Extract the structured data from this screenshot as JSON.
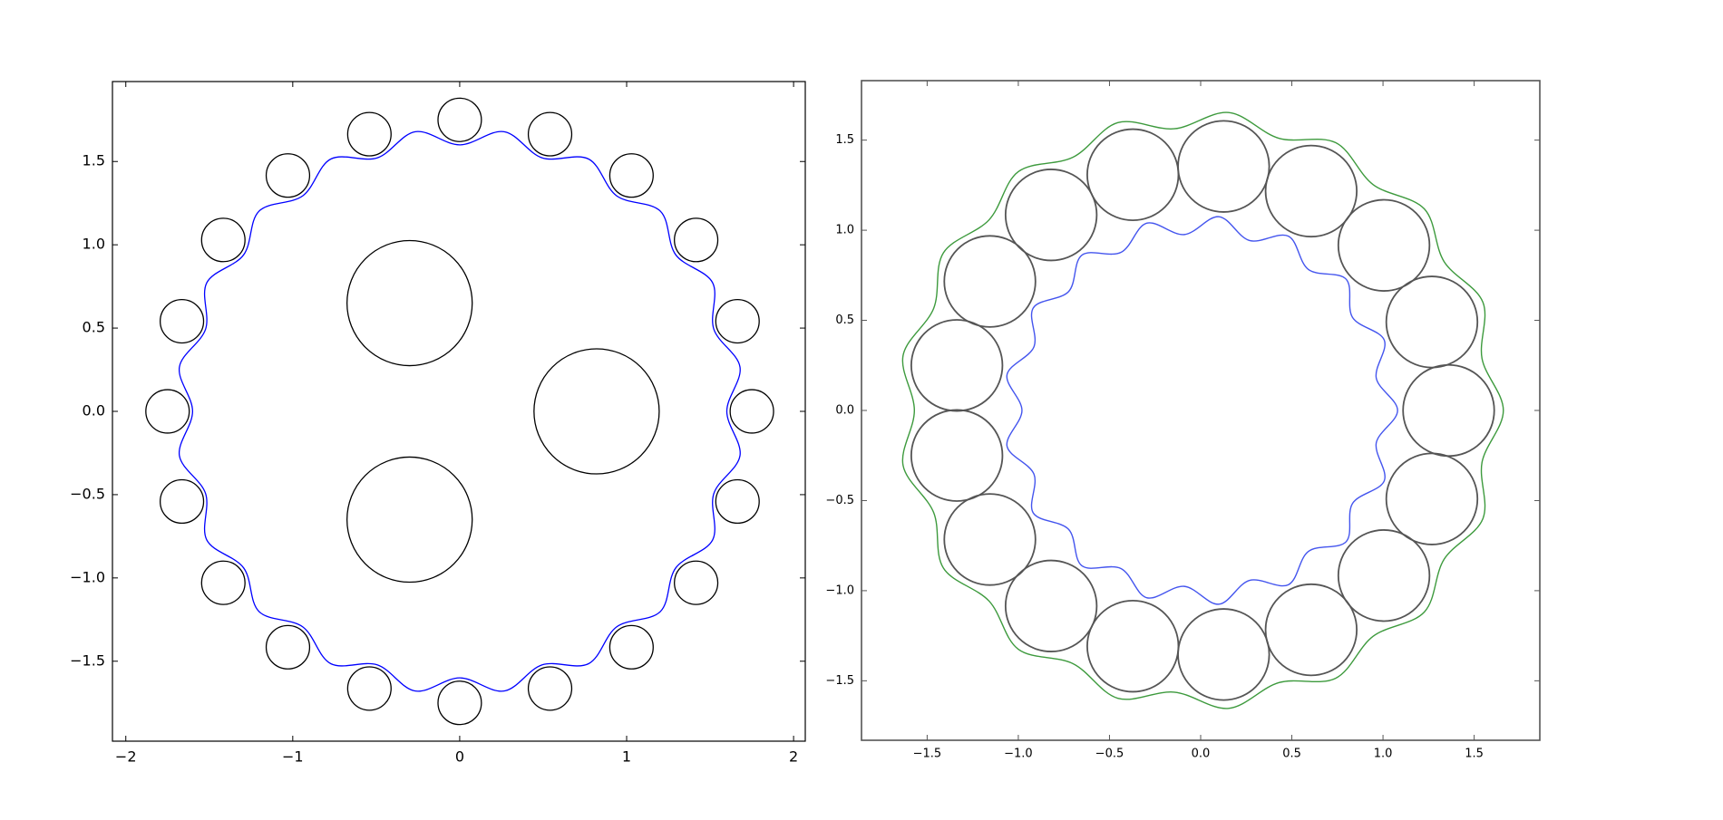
{
  "chart_data": [
    {
      "type": "circles",
      "xlim": [
        -2.08,
        2.07
      ],
      "ylim": [
        -1.98,
        1.98
      ],
      "xticks": [
        {
          "value": -2,
          "label": "−2"
        },
        {
          "value": -1,
          "label": "−1"
        },
        0,
        1,
        2
      ],
      "yticks": [
        {
          "value": -1.5,
          "label": "−1.5"
        },
        {
          "value": -1,
          "label": "−1.0"
        },
        {
          "value": -0.5,
          "label": "−0.5"
        },
        {
          "value": 0,
          "label": "0.0"
        },
        0.5,
        {
          "value": 1,
          "label": "1.0"
        },
        1.5
      ],
      "circles": {
        "color": "#000000",
        "x": [
          1.75,
          1.664,
          1.416,
          1.029,
          0.541,
          0,
          -0.541,
          -1.029,
          -1.416,
          -1.664,
          -1.75,
          -1.664,
          -1.416,
          -1.029,
          -0.541,
          0,
          0.541,
          1.029,
          1.416,
          1.664,
          0.82,
          -0.3,
          -0.3
        ],
        "y": [
          0,
          0.541,
          1.029,
          1.416,
          1.664,
          1.75,
          1.664,
          1.416,
          1.029,
          0.541,
          0,
          -0.541,
          -1.029,
          -1.416,
          -1.664,
          -1.75,
          -1.664,
          -1.416,
          -1.029,
          -0.541,
          0,
          0.65,
          -0.65
        ],
        "r": [
          0.13,
          0.13,
          0.13,
          0.13,
          0.13,
          0.13,
          0.13,
          0.13,
          0.13,
          0.13,
          0.13,
          0.13,
          0.13,
          0.13,
          0.13,
          0.13,
          0.13,
          0.13,
          0.13,
          0.13,
          0.375,
          0.375,
          0.375
        ]
      },
      "series": [
        {
          "color": "#0000ff",
          "x": [
            1.6,
            1.679,
            1.522,
            1.515,
            1.294,
            1.202,
            0.94,
            0.772,
            0.494,
            0.266,
            0,
            -0.266,
            -0.494,
            -0.772,
            -0.94,
            -1.202,
            -1.294,
            -1.515,
            -1.522,
            -1.679,
            -1.6,
            -1.679,
            -1.522,
            -1.515,
            -1.294,
            -1.202,
            -0.94,
            -0.772,
            -0.494,
            -0.266,
            0,
            0.266,
            0.494,
            0.772,
            0.94,
            1.202,
            1.294,
            1.515,
            1.522,
            1.679
          ],
          "y": [
            0,
            0.266,
            0.494,
            0.772,
            0.94,
            1.202,
            1.294,
            1.515,
            1.522,
            1.679,
            1.6,
            1.679,
            1.522,
            1.515,
            1.294,
            1.202,
            0.94,
            0.772,
            0.494,
            0.266,
            0,
            -0.266,
            -0.494,
            -0.772,
            -0.94,
            -1.202,
            -1.294,
            -1.515,
            -1.522,
            -1.679,
            -1.6,
            -1.679,
            -1.522,
            -1.515,
            -1.294,
            -1.202,
            -0.94,
            -0.772,
            -0.494,
            -0.266
          ]
        }
      ]
    },
    {
      "type": "circles",
      "xlim": [
        -1.86,
        1.86
      ],
      "ylim": [
        -1.83,
        1.83
      ],
      "xticks": [
        {
          "value": -1.5,
          "label": "−1.5"
        },
        {
          "value": -1,
          "label": "−1.0"
        },
        {
          "value": -0.5,
          "label": "−0.5"
        },
        {
          "value": 0,
          "label": "0.0"
        },
        0.5,
        {
          "value": 1,
          "label": "1.0"
        },
        1.5
      ],
      "yticks": [
        {
          "value": -1.5,
          "label": "−1.5"
        },
        {
          "value": -1,
          "label": "−1.0"
        },
        {
          "value": -0.5,
          "label": "−0.5"
        },
        {
          "value": 0,
          "label": "0.0"
        },
        0.5,
        {
          "value": 1,
          "label": "1.0"
        },
        1.5
      ],
      "circles": {
        "color": "#555555",
        "x": [
          1.36,
          1.268,
          1.005,
          0.606,
          0.126,
          -0.372,
          -0.82,
          -1.156,
          -1.337,
          -1.337,
          -1.156,
          -0.82,
          -0.372,
          0.126,
          0.606,
          1.005,
          1.268
        ],
        "y": [
          0,
          0.491,
          0.916,
          1.217,
          1.354,
          1.308,
          1.085,
          0.716,
          0.25,
          -0.25,
          -0.716,
          -1.085,
          -1.308,
          -1.354,
          -1.217,
          -0.916,
          -0.491
        ],
        "r": [
          0.25,
          0.25,
          0.25,
          0.25,
          0.25,
          0.25,
          0.25,
          0.25,
          0.25,
          0.25,
          0.25,
          0.25,
          0.25,
          0.25,
          0.25,
          0.25,
          0.25
        ]
      },
      "series": [
        {
          "color": "#4455ee",
          "x": [
            1.08,
            0.963,
            1.007,
            0.833,
            0.798,
            0.591,
            0.481,
            0.268,
            0.1,
            -0.09,
            -0.296,
            -0.437,
            -0.651,
            -0.724,
            -0.918,
            -0.914,
            -1.062,
            -0.98,
            -1.062,
            -0.914,
            -0.918,
            -0.724,
            -0.651,
            -0.437,
            -0.296,
            -0.09,
            0.1,
            0.268,
            0.481,
            0.591,
            0.798,
            0.833,
            1.007,
            0.963
          ],
          "y": [
            0,
            0.18,
            0.39,
            0.516,
            0.728,
            0.782,
            0.967,
            0.943,
            1.075,
            0.976,
            1.039,
            0.877,
            0.862,
            0.66,
            0.569,
            0.354,
            0.198,
            0,
            -0.198,
            -0.354,
            -0.569,
            -0.66,
            -0.862,
            -0.877,
            -1.039,
            -0.976,
            -1.075,
            -0.943,
            -0.967,
            -0.782,
            -0.728,
            -0.516,
            -0.39,
            -0.18
          ]
        },
        {
          "color": "#3d9a3d",
          "x": [
            1.66,
            1.543,
            1.548,
            1.335,
            1.227,
            0.946,
            0.74,
            0.43,
            0.153,
            -0.145,
            -0.454,
            -0.7,
            -1.0,
            -1.16,
            -1.411,
            -1.464,
            -1.632,
            -1.57,
            -1.632,
            -1.464,
            -1.411,
            -1.16,
            -1.0,
            -0.7,
            -0.454,
            -0.145,
            0.153,
            0.43,
            0.74,
            0.946,
            1.227,
            1.335,
            1.548,
            1.543
          ],
          "y": [
            0,
            0.288,
            0.6,
            0.826,
            1.118,
            1.253,
            1.486,
            1.51,
            1.653,
            1.563,
            1.597,
            1.405,
            1.325,
            1.058,
            0.874,
            0.567,
            0.305,
            0,
            -0.305,
            -0.567,
            -0.874,
            -1.058,
            -1.325,
            -1.405,
            -1.597,
            -1.563,
            -1.653,
            -1.51,
            -1.486,
            -1.253,
            -1.118,
            -0.826,
            -0.6,
            -0.288
          ]
        }
      ]
    }
  ]
}
